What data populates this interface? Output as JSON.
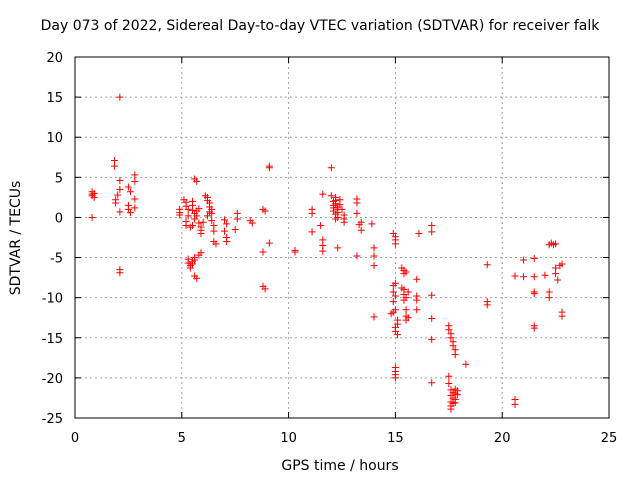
{
  "chart_data": {
    "type": "scatter",
    "title": "Day 073 of 2022, Sidereal Day-to-day VTEC variation (SDTVAR) for receiver falk",
    "xlabel": "GPS time / hours",
    "ylabel": "SDTVAR / TECUs",
    "xlim": [
      0,
      25
    ],
    "ylim": [
      -25,
      20
    ],
    "xticks": [
      0,
      5,
      10,
      15,
      20,
      25
    ],
    "yticks": [
      -25,
      -20,
      -15,
      -10,
      -5,
      0,
      5,
      10,
      15,
      20
    ],
    "grid": true,
    "marker": "+",
    "color": "#ff0000",
    "series": [
      {
        "name": "SDTVAR",
        "points": [
          [
            0.8,
            3.2
          ],
          [
            0.8,
            2.9
          ],
          [
            0.8,
            2.7
          ],
          [
            0.9,
            3.0
          ],
          [
            0.9,
            2.5
          ],
          [
            0.8,
            0.0
          ],
          [
            1.85,
            7.1
          ],
          [
            1.85,
            6.4
          ],
          [
            1.9,
            2.2
          ],
          [
            1.9,
            1.8
          ],
          [
            2.0,
            2.8
          ],
          [
            2.1,
            15.0
          ],
          [
            2.1,
            4.6
          ],
          [
            2.1,
            3.5
          ],
          [
            2.1,
            0.7
          ],
          [
            2.1,
            -6.5
          ],
          [
            2.1,
            -6.9
          ],
          [
            2.5,
            3.8
          ],
          [
            2.6,
            3.2
          ],
          [
            2.5,
            1.5
          ],
          [
            2.6,
            0.6
          ],
          [
            2.5,
            1.0
          ],
          [
            2.8,
            5.3
          ],
          [
            2.8,
            4.5
          ],
          [
            2.8,
            2.3
          ],
          [
            2.8,
            1.2
          ],
          [
            4.9,
            1.0
          ],
          [
            4.9,
            0.6
          ],
          [
            4.9,
            0.3
          ],
          [
            5.1,
            2.2
          ],
          [
            5.2,
            1.9
          ],
          [
            5.2,
            1.4
          ],
          [
            5.3,
            1.0
          ],
          [
            5.3,
            0.2
          ],
          [
            5.2,
            -0.5
          ],
          [
            5.2,
            -1.0
          ],
          [
            5.4,
            -1.2
          ],
          [
            5.5,
            -1.0
          ],
          [
            5.3,
            -5.2
          ],
          [
            5.3,
            -5.7
          ],
          [
            5.4,
            -6.0
          ],
          [
            5.4,
            -6.3
          ],
          [
            5.5,
            -5.8
          ],
          [
            5.5,
            -5.5
          ],
          [
            5.6,
            -5.3
          ],
          [
            5.6,
            -5.0
          ],
          [
            5.5,
            2.0
          ],
          [
            5.5,
            1.5
          ],
          [
            5.5,
            0.9
          ],
          [
            5.6,
            0.5
          ],
          [
            5.6,
            -0.2
          ],
          [
            5.7,
            0.2
          ],
          [
            5.7,
            0.8
          ],
          [
            5.8,
            1.1
          ],
          [
            5.8,
            -0.7
          ],
          [
            5.9,
            -1.2
          ],
          [
            5.9,
            -2.0
          ],
          [
            5.6,
            4.8
          ],
          [
            5.7,
            4.5
          ],
          [
            5.6,
            -7.3
          ],
          [
            5.7,
            -7.6
          ],
          [
            5.8,
            -4.7
          ],
          [
            5.9,
            -4.4
          ],
          [
            5.9,
            -1.6
          ],
          [
            6.0,
            -0.6
          ],
          [
            6.1,
            2.7
          ],
          [
            6.2,
            2.5
          ],
          [
            6.2,
            2.1
          ],
          [
            6.3,
            1.8
          ],
          [
            6.3,
            1.3
          ],
          [
            6.3,
            0.7
          ],
          [
            6.2,
            0.2
          ],
          [
            6.4,
            0.5
          ],
          [
            6.4,
            1.0
          ],
          [
            6.4,
            -0.4
          ],
          [
            6.5,
            -1.0
          ],
          [
            6.5,
            -1.7
          ],
          [
            6.5,
            -3.0
          ],
          [
            6.6,
            -3.3
          ],
          [
            7.0,
            -0.3
          ],
          [
            7.1,
            -0.8
          ],
          [
            7.0,
            -1.7
          ],
          [
            7.1,
            -2.5
          ],
          [
            7.1,
            -3.0
          ],
          [
            7.6,
            0.5
          ],
          [
            7.6,
            -0.2
          ],
          [
            7.5,
            -1.5
          ],
          [
            8.2,
            -0.4
          ],
          [
            8.3,
            -0.7
          ],
          [
            8.8,
            1.0
          ],
          [
            8.9,
            0.8
          ],
          [
            8.8,
            -4.3
          ],
          [
            8.8,
            -8.6
          ],
          [
            8.9,
            -8.9
          ],
          [
            9.1,
            6.4
          ],
          [
            9.1,
            6.2
          ],
          [
            9.1,
            -3.2
          ],
          [
            10.3,
            -4.1
          ],
          [
            10.3,
            -4.3
          ],
          [
            11.1,
            1.0
          ],
          [
            11.1,
            0.5
          ],
          [
            11.1,
            -1.8
          ],
          [
            11.5,
            -1.0
          ],
          [
            11.6,
            -2.8
          ],
          [
            11.6,
            -3.5
          ],
          [
            11.6,
            -4.2
          ],
          [
            11.6,
            2.9
          ],
          [
            12.0,
            6.2
          ],
          [
            12.0,
            2.7
          ],
          [
            12.1,
            2.0
          ],
          [
            12.1,
            1.5
          ],
          [
            12.1,
            1.2
          ],
          [
            12.1,
            0.8
          ],
          [
            12.2,
            0.4
          ],
          [
            12.2,
            -0.2
          ],
          [
            12.2,
            2.5
          ],
          [
            12.2,
            2.1
          ],
          [
            12.2,
            1.7
          ],
          [
            12.3,
            1.3
          ],
          [
            12.3,
            1.0
          ],
          [
            12.3,
            0.6
          ],
          [
            12.3,
            0.0
          ],
          [
            12.3,
            -3.8
          ],
          [
            12.4,
            2.2
          ],
          [
            12.4,
            1.6
          ],
          [
            12.5,
            1.0
          ],
          [
            12.6,
            0.3
          ],
          [
            12.6,
            -0.2
          ],
          [
            12.6,
            -0.6
          ],
          [
            13.2,
            2.3
          ],
          [
            13.2,
            1.8
          ],
          [
            13.2,
            0.5
          ],
          [
            13.3,
            -0.9
          ],
          [
            13.4,
            -0.6
          ],
          [
            13.4,
            -1.6
          ],
          [
            13.2,
            -4.8
          ],
          [
            13.9,
            -0.8
          ],
          [
            14.0,
            -3.8
          ],
          [
            14.0,
            -4.8
          ],
          [
            14.0,
            -6.0
          ],
          [
            14.0,
            -12.4
          ],
          [
            14.9,
            -2.0
          ],
          [
            15.0,
            -2.4
          ],
          [
            15.0,
            -2.8
          ],
          [
            15.0,
            -3.3
          ],
          [
            14.8,
            -12.0
          ],
          [
            14.9,
            -11.8
          ],
          [
            14.9,
            -10.5
          ],
          [
            14.9,
            -9.3
          ],
          [
            14.9,
            -8.5
          ],
          [
            15.0,
            -8.2
          ],
          [
            15.0,
            -9.8
          ],
          [
            15.0,
            -11.5
          ],
          [
            15.0,
            -13.7
          ],
          [
            15.0,
            -14.2
          ],
          [
            15.1,
            -14.6
          ],
          [
            15.1,
            -13.3
          ],
          [
            15.1,
            -12.8
          ],
          [
            15.0,
            -18.7
          ],
          [
            15.0,
            -19.2
          ],
          [
            15.0,
            -19.6
          ],
          [
            15.0,
            -20.0
          ],
          [
            15.3,
            -6.3
          ],
          [
            15.4,
            -6.6
          ],
          [
            15.4,
            -7.0
          ],
          [
            15.5,
            -6.8
          ],
          [
            15.3,
            -8.8
          ],
          [
            15.4,
            -9.6
          ],
          [
            15.4,
            -10.3
          ],
          [
            15.5,
            -10.0
          ],
          [
            15.5,
            -11.5
          ],
          [
            15.5,
            -12.3
          ],
          [
            15.5,
            -12.8
          ],
          [
            15.6,
            -12.5
          ],
          [
            15.4,
            -9.0
          ],
          [
            15.6,
            -9.3
          ],
          [
            16.0,
            -7.7
          ],
          [
            16.0,
            -9.8
          ],
          [
            16.0,
            -10.3
          ],
          [
            16.0,
            -11.5
          ],
          [
            16.1,
            -2.0
          ],
          [
            16.7,
            -1.0
          ],
          [
            16.7,
            -1.8
          ],
          [
            16.7,
            -9.7
          ],
          [
            16.7,
            -12.6
          ],
          [
            16.7,
            -15.2
          ],
          [
            16.7,
            -20.6
          ],
          [
            17.5,
            -13.5
          ],
          [
            17.5,
            -14.0
          ],
          [
            17.6,
            -14.5
          ],
          [
            17.6,
            -15.0
          ],
          [
            17.7,
            -15.5
          ],
          [
            17.7,
            -16.0
          ],
          [
            17.8,
            -16.5
          ],
          [
            17.8,
            -17.1
          ],
          [
            17.5,
            -19.8
          ],
          [
            17.5,
            -20.7
          ],
          [
            17.6,
            -21.5
          ],
          [
            17.6,
            -22.2
          ],
          [
            17.6,
            -23.0
          ],
          [
            17.6,
            -23.5
          ],
          [
            17.6,
            -23.9
          ],
          [
            17.7,
            -21.8
          ],
          [
            17.7,
            -22.5
          ],
          [
            17.7,
            -23.2
          ],
          [
            17.8,
            -22.0
          ],
          [
            17.8,
            -21.4
          ],
          [
            17.8,
            -22.7
          ],
          [
            17.8,
            -23.1
          ],
          [
            17.9,
            -21.6
          ],
          [
            17.9,
            -22.1
          ],
          [
            18.3,
            -18.3
          ],
          [
            19.3,
            -5.9
          ],
          [
            19.3,
            -10.5
          ],
          [
            19.3,
            -10.9
          ],
          [
            20.6,
            -7.3
          ],
          [
            20.6,
            -22.7
          ],
          [
            20.6,
            -23.3
          ],
          [
            21.0,
            -5.3
          ],
          [
            21.0,
            -7.4
          ],
          [
            21.5,
            -5.1
          ],
          [
            21.5,
            -7.4
          ],
          [
            21.5,
            -9.3
          ],
          [
            21.5,
            -9.5
          ],
          [
            21.5,
            -13.5
          ],
          [
            21.5,
            -13.8
          ],
          [
            22.0,
            -7.2
          ],
          [
            22.2,
            -9.3
          ],
          [
            22.2,
            -10.0
          ],
          [
            22.2,
            -3.4
          ],
          [
            22.3,
            -3.2
          ],
          [
            22.4,
            -3.4
          ],
          [
            22.5,
            -3.3
          ],
          [
            22.5,
            -6.3
          ],
          [
            22.5,
            -7.0
          ],
          [
            22.6,
            -7.8
          ],
          [
            22.7,
            -6.0
          ],
          [
            22.8,
            -5.8
          ],
          [
            22.8,
            -11.8
          ],
          [
            22.8,
            -12.3
          ]
        ]
      }
    ]
  }
}
